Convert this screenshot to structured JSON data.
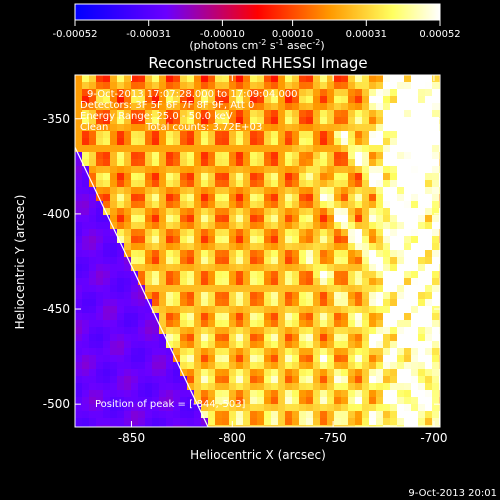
{
  "colorbar": {
    "ticks": [
      "-0.00052",
      "-0.00031",
      "-0.00010",
      "0.00010",
      "0.00031",
      "0.00052"
    ],
    "tick_values": [
      -0.00052,
      -0.00031,
      -0.0001,
      0.0001,
      0.00031,
      0.00052
    ],
    "range": [
      -0.00052,
      0.00052
    ],
    "unit_main": "(photons cm",
    "unit_sup1": "-2",
    "unit_mid": " s",
    "unit_sup2": "-1",
    "unit_tail": " asec",
    "unit_sup3": "-2",
    "unit_close": ")",
    "colors": [
      "#0000ff",
      "#6a00ff",
      "#ff0000",
      "#ff9a00",
      "#ffff60",
      "#ffffff"
    ]
  },
  "chart_data": {
    "type": "heatmap",
    "title": "Reconstructed RHESSI Image",
    "xlabel": "Heliocentric X (arcsec)",
    "ylabel": "Heliocentric Y (arcsec)",
    "xlim": [
      -878,
      -697
    ],
    "ylim": [
      -512,
      -327
    ],
    "xticks": [
      -850,
      -800,
      -750,
      -700
    ],
    "yticks": [
      -350,
      -400,
      -450,
      -500
    ],
    "xtick_labels": [
      "-850",
      "-800",
      "-750",
      "-700"
    ],
    "ytick_labels": [
      "-350",
      "-400",
      "-450",
      "-500"
    ],
    "limb_line": [
      [
        -878,
        -365
      ],
      [
        -812,
        -512
      ]
    ],
    "peak": [
      -844,
      -503
    ],
    "annotations": {
      "time": "9-Oct-2013 17:07:28.000 to 17:09:04.000",
      "detectors": "Detectors: 3F 5F 6F 7F 8F 9F, Att 0",
      "energy": "Energy Range: 25.0 - 50.0 keV",
      "clean": "Clean",
      "counts": "Total counts: 3.72E+03",
      "peak_label": "Position of peak = [-844,-503]"
    }
  },
  "footer": {
    "timestamp": "9-Oct-2013 20:01"
  }
}
